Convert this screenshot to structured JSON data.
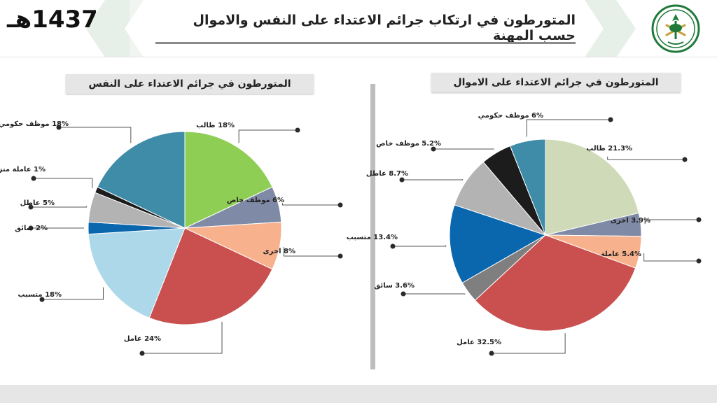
{
  "header": {
    "year": "1437هـ",
    "title": "المتورطون في ارتكاب جرائم الاعتداء على النفس والاموال حسب المهنة"
  },
  "chart_data": [
    {
      "type": "pie",
      "title": "المتورطون في جرائم الاعتداء على النفس",
      "slices": [
        {
          "name": "طالب",
          "value": 18,
          "color": "#8fce55",
          "label": "طالب",
          "value_label": "18%"
        },
        {
          "name": "موظف خاص",
          "value": 6,
          "color": "#7f8aa6",
          "label": "موظف خاص",
          "value_label": "6%"
        },
        {
          "name": "اخرى",
          "value": 8,
          "color": "#f7b18d",
          "label": "اخرى",
          "value_label": "8%"
        },
        {
          "name": "عامل",
          "value": 24,
          "color": "#c9504f",
          "label": "عامل",
          "value_label": "24%"
        },
        {
          "name": "متسبب",
          "value": 18,
          "color": "#acd8ea",
          "label": "متسبب",
          "value_label": "18%"
        },
        {
          "name": "سائق",
          "value": 2,
          "color": "#0a66ad",
          "label": "سائق",
          "value_label": "2%"
        },
        {
          "name": "عاطل",
          "value": 5,
          "color": "#b3b3b3",
          "label": "عاطل",
          "value_label": "5%"
        },
        {
          "name": "عاملة منزلية",
          "value": 1,
          "color": "#1c1c1c",
          "label": "عاملة منزلية",
          "value_label": "1%"
        },
        {
          "name": "موظف حكومي",
          "value": 18,
          "color": "#3f8ca9",
          "label": "موظف حكومي",
          "value_label": "18%"
        }
      ]
    },
    {
      "type": "pie",
      "title": "المتورطون في جرائم الاعتداء على الاموال",
      "slices": [
        {
          "name": "طالب",
          "value": 21.3,
          "color": "#cfdbb8",
          "label": "طالب",
          "value_label": "21.3%"
        },
        {
          "name": "اخرى",
          "value": 3.9,
          "color": "#7f8aa6",
          "label": "اخرى",
          "value_label": "3.9%"
        },
        {
          "name": "عاملة منزلية",
          "value": 5.4,
          "color": "#f7b18d",
          "label": "عاملة منزلية",
          "value_label": "5.4%"
        },
        {
          "name": "عامل",
          "value": 32.5,
          "color": "#c9504f",
          "label": "عامل",
          "value_label": "32.5%"
        },
        {
          "name": "سائق",
          "value": 3.6,
          "color": "#7f7f7f",
          "label": "سائق",
          "value_label": "3.6%"
        },
        {
          "name": "متسبب",
          "value": 13.4,
          "color": "#0a66ad",
          "label": "متسبب",
          "value_label": "13.4%"
        },
        {
          "name": "عاطل",
          "value": 8.7,
          "color": "#b3b3b3",
          "label": "عاطل",
          "value_label": "8.7%"
        },
        {
          "name": "موظف خاص",
          "value": 5.2,
          "color": "#1c1c1c",
          "label": "موظف خاص",
          "value_label": "5.2%"
        },
        {
          "name": "موظف حكومي",
          "value": 6,
          "color": "#3f8ca9",
          "label": "موظف حكومي",
          "value_label": "6%"
        }
      ]
    }
  ]
}
